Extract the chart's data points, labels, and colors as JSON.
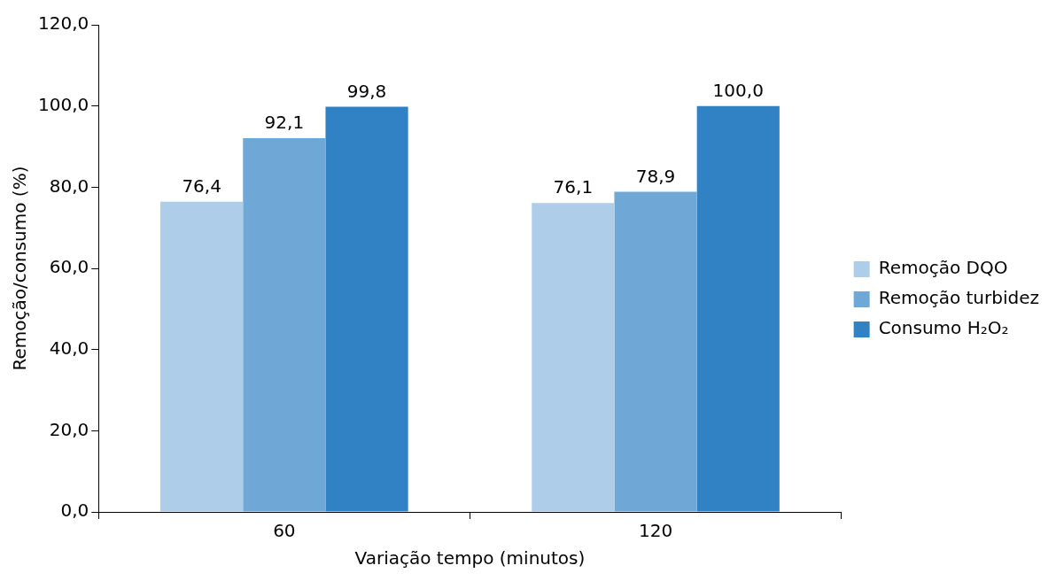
{
  "chart_data": {
    "type": "bar",
    "xlabel": "Variação tempo (minutos)",
    "ylabel": "Remoção/consumo (%)",
    "categories": [
      "60",
      "120"
    ],
    "series": [
      {
        "name": "Remoção DQO",
        "color": "#aecde8",
        "values": [
          76.4,
          76.1
        ],
        "value_labels": [
          "76,4",
          "76,1"
        ]
      },
      {
        "name": "Remoção turbidez",
        "color": "#6fa8d6",
        "values": [
          92.1,
          78.9
        ],
        "value_labels": [
          "92,1",
          "78,9"
        ]
      },
      {
        "name": "Consumo H₂O₂",
        "color": "#3182c5",
        "values": [
          99.8,
          100.0
        ],
        "value_labels": [
          "99,8",
          "100,0"
        ]
      }
    ],
    "ylim": [
      0,
      120
    ],
    "yticks": [
      {
        "value": 0,
        "label": "0,0"
      },
      {
        "value": 20,
        "label": "20,0"
      },
      {
        "value": 40,
        "label": "40,0"
      },
      {
        "value": 60,
        "label": "60,0"
      },
      {
        "value": 80,
        "label": "80,0"
      },
      {
        "value": 100,
        "label": "100,0"
      },
      {
        "value": 120,
        "label": "120,0"
      }
    ],
    "grid": false,
    "legend": "right"
  }
}
